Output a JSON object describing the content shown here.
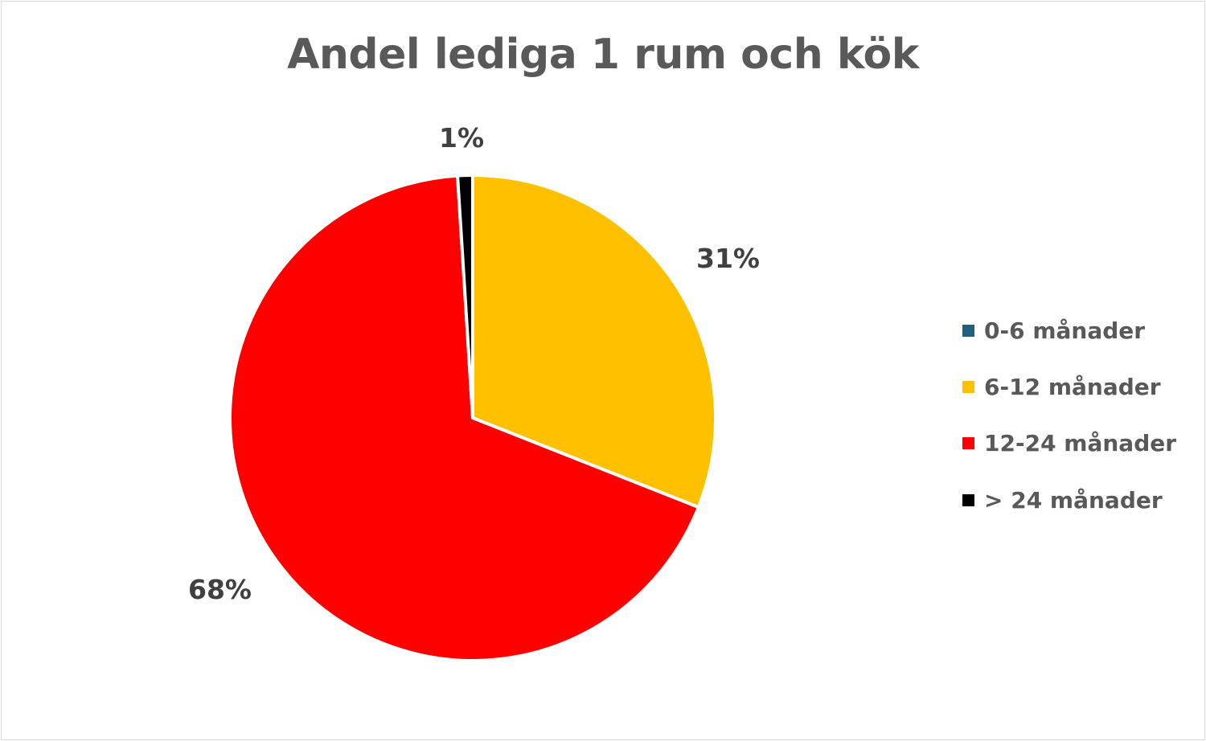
{
  "chart_data": {
    "type": "pie",
    "title": "Andel lediga 1 rum och kök",
    "slices": [
      {
        "label": "0-6 månader",
        "value": 0,
        "color": "#1f5f7f",
        "data_label": ""
      },
      {
        "label": "6-12 månader",
        "value": 31,
        "color": "#ffc000",
        "data_label": "31%"
      },
      {
        "label": "12-24 månader",
        "value": 68,
        "color": "#ff0000",
        "data_label": "68%"
      },
      {
        "label": "> 24 månader",
        "value": 1,
        "color": "#000000",
        "data_label": "1%"
      }
    ],
    "legend_position": "right",
    "start_angle_deg": 0
  }
}
